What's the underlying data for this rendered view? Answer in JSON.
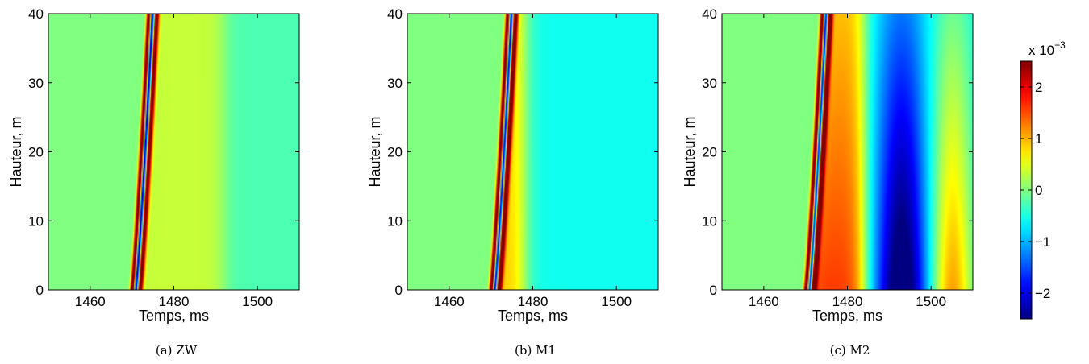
{
  "figure": {
    "colorbar": {
      "multiplier_label": "x 10",
      "multiplier_exponent": "−3",
      "ticks": [
        -2,
        -1,
        0,
        1,
        2
      ],
      "tick_labels": [
        "−2",
        "−1",
        "0",
        "1",
        "2"
      ],
      "range": [
        -2.5,
        2.5
      ],
      "colormap": "jet"
    }
  },
  "chart_data": [
    {
      "type": "heatmap",
      "caption": "(a)  ZW",
      "xlabel": "Temps, ms",
      "ylabel": "Hauteur, m",
      "xlim": [
        1450,
        1510
      ],
      "ylim": [
        0,
        40
      ],
      "xticks": [
        1460,
        1480,
        1500
      ],
      "yticks": [
        0,
        10,
        20,
        30,
        40
      ],
      "zlim": [
        -2.5,
        2.5
      ],
      "features": {
        "front_arrival_ms": {
          "y0": 1470,
          "y40": 1474
        },
        "tail_level": 0.35,
        "tail_end_ms": 1492,
        "far_level": -0.25,
        "lobes": []
      }
    },
    {
      "type": "heatmap",
      "caption": "(b)  M1",
      "xlabel": "Temps, ms",
      "ylabel": "Hauteur, m",
      "xlim": [
        1450,
        1510
      ],
      "ylim": [
        0,
        40
      ],
      "xticks": [
        1460,
        1480,
        1500
      ],
      "yticks": [
        0,
        10,
        20,
        30,
        40
      ],
      "zlim": [
        -2.5,
        2.5
      ],
      "features": {
        "front_arrival_ms": {
          "y0": 1470,
          "y40": 1474
        },
        "tail_level": 0.9,
        "tail_end_ms": 1478,
        "far_level": -0.55,
        "lobes": []
      }
    },
    {
      "type": "heatmap",
      "caption": "(c)  M2",
      "xlabel": "Temps, ms",
      "ylabel": "Hauteur, m",
      "xlim": [
        1450,
        1510
      ],
      "ylim": [
        0,
        40
      ],
      "xticks": [
        1460,
        1480,
        1500
      ],
      "yticks": [
        0,
        10,
        20,
        30,
        40
      ],
      "zlim": [
        -2.5,
        2.5
      ],
      "features": {
        "front_arrival_ms": {
          "y0": 1470,
          "y40": 1474
        },
        "tail_level": 1.4,
        "tail_end_ms": 1484,
        "far_level": -0.6,
        "lobes": [
          {
            "t": 1493,
            "w": 6,
            "amp": -2.0
          },
          {
            "t": 1505,
            "w": 5,
            "amp": 1.5
          }
        ]
      }
    }
  ]
}
